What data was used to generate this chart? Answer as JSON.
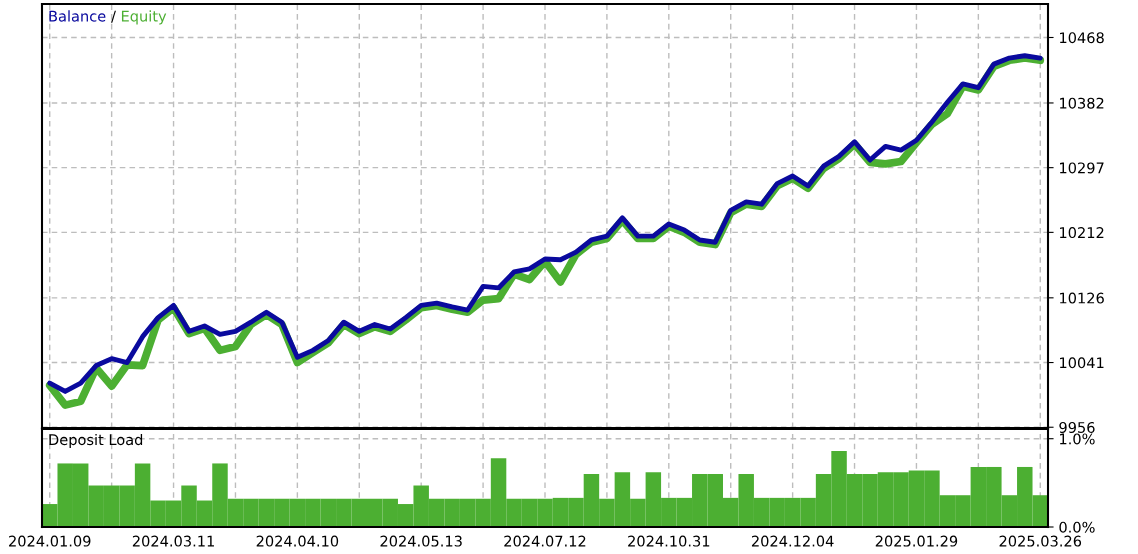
{
  "chart_data": [
    {
      "type": "line",
      "annotations": [
        "/"
      ],
      "legend": "top left",
      "grid": true,
      "tick_labels": "y",
      "categories": [
        "2024.01.09",
        null,
        null,
        null,
        null,
        null,
        null,
        null,
        "2024.03.11",
        null,
        null,
        null,
        null,
        null,
        null,
        null,
        "2024.04.10",
        null,
        null,
        null,
        null,
        null,
        null,
        null,
        "2024.05.13",
        null,
        null,
        null,
        null,
        null,
        null,
        null,
        "2024.07.12",
        null,
        null,
        null,
        null,
        null,
        null,
        null,
        "2024.10.31",
        null,
        null,
        null,
        null,
        null,
        null,
        null,
        "2024.12.04",
        null,
        null,
        null,
        null,
        null,
        null,
        null,
        "2025.01.29",
        null,
        null,
        null,
        null,
        null,
        null,
        null,
        "2025.03.26"
      ],
      "ylim": [
        9955,
        10512
      ],
      "yticks": [
        9956,
        10041,
        10126,
        10212,
        10297,
        10382,
        10468
      ],
      "series": [
        {
          "name": "Equity",
          "color": "#4caf32",
          "values": [
            10011,
            9985,
            9990,
            10034,
            10010,
            10038,
            10037,
            10097,
            10113,
            10079,
            10086,
            10057,
            10062,
            10091,
            10104,
            10091,
            10041,
            10054,
            10067,
            10091,
            10079,
            10088,
            10082,
            10097,
            10113,
            10116,
            10111,
            10107,
            10123,
            10125,
            10157,
            10150,
            10174,
            10147,
            10183,
            10199,
            10204,
            10228,
            10204,
            10204,
            10220,
            10212,
            10199,
            10196,
            10238,
            10249,
            10246,
            10273,
            10283,
            10270,
            10296,
            10309,
            10328,
            10304,
            10302,
            10305,
            10330,
            10354,
            10368,
            10404,
            10399,
            10430,
            10438,
            10441,
            10438
          ]
        },
        {
          "name": "Balance",
          "color": "#0a0a9e",
          "values": [
            10014,
            10003,
            10014,
            10037,
            10046,
            10041,
            10075,
            10100,
            10116,
            10082,
            10089,
            10078,
            10082,
            10094,
            10107,
            10094,
            10048,
            10057,
            10070,
            10094,
            10082,
            10091,
            10085,
            10100,
            10116,
            10119,
            10114,
            10110,
            10141,
            10139,
            10160,
            10164,
            10177,
            10176,
            10186,
            10202,
            10207,
            10231,
            10207,
            10207,
            10223,
            10215,
            10202,
            10199,
            10241,
            10252,
            10249,
            10276,
            10286,
            10273,
            10299,
            10312,
            10331,
            10307,
            10325,
            10320,
            10333,
            10357,
            10383,
            10407,
            10402,
            10433,
            10441,
            10444,
            10441
          ]
        }
      ]
    },
    {
      "type": "bar",
      "title": "Deposit Load",
      "grid": true,
      "color": "#4caf32",
      "categories": [
        "2024.01.09",
        null,
        null,
        null,
        null,
        null,
        null,
        null,
        "2024.03.11",
        null,
        null,
        null,
        null,
        null,
        null,
        null,
        "2024.04.10",
        null,
        null,
        null,
        null,
        null,
        null,
        null,
        "2024.05.13",
        null,
        null,
        null,
        null,
        null,
        null,
        null,
        "2024.07.12",
        null,
        null,
        null,
        null,
        null,
        null,
        null,
        "2024.10.31",
        null,
        null,
        null,
        null,
        null,
        null,
        null,
        "2024.12.04",
        null,
        null,
        null,
        null,
        null,
        null,
        null,
        "2025.01.29",
        null,
        null,
        null,
        null,
        null,
        null,
        null,
        "2025.03.26"
      ],
      "ylim": [
        0,
        1.11
      ],
      "yticks": [
        {
          "value": 0,
          "label": "0.0%"
        },
        {
          "value": 1,
          "label": "1.0%"
        }
      ],
      "values": [
        0.26,
        0.72,
        0.72,
        0.47,
        0.47,
        0.47,
        0.72,
        0.3,
        0.3,
        0.47,
        0.3,
        0.72,
        0.32,
        0.32,
        0.32,
        0.32,
        0.32,
        0.32,
        0.32,
        0.32,
        0.32,
        0.32,
        0.32,
        0.26,
        0.47,
        0.32,
        0.32,
        0.32,
        0.32,
        0.78,
        0.32,
        0.32,
        0.32,
        0.33,
        0.33,
        0.6,
        0.32,
        0.62,
        0.32,
        0.62,
        0.33,
        0.33,
        0.6,
        0.6,
        0.33,
        0.6,
        0.33,
        0.33,
        0.33,
        0.33,
        0.6,
        0.86,
        0.6,
        0.6,
        0.62,
        0.62,
        0.64,
        0.64,
        0.36,
        0.36,
        0.68,
        0.68,
        0.36,
        0.68,
        0.36
      ]
    }
  ]
}
